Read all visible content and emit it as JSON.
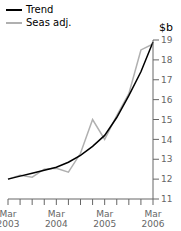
{
  "chart_data": {
    "type": "line",
    "title": "$b",
    "categories": [
      "Mar\n2003",
      null,
      null,
      null,
      "Mar\n2004",
      null,
      null,
      null,
      "Mar\n2005",
      null,
      null,
      null,
      "Mar\n2006"
    ],
    "series": [
      {
        "name": "Trend",
        "color": "#000000",
        "values": [
          12.0,
          12.15,
          12.3,
          12.45,
          12.6,
          12.85,
          13.2,
          13.65,
          14.2,
          15.1,
          16.2,
          17.4,
          18.9
        ]
      },
      {
        "name": "Seas adj.",
        "color": "#b0b0b0",
        "values": [
          12.0,
          12.2,
          12.1,
          12.5,
          12.55,
          12.35,
          13.3,
          15.0,
          14.0,
          15.2,
          16.3,
          18.5,
          18.8
        ]
      }
    ],
    "ylim": [
      11,
      19
    ],
    "yticks": [
      11,
      12,
      13,
      14,
      15,
      16,
      17,
      18,
      19
    ],
    "grid": false,
    "legend": "upper left"
  }
}
